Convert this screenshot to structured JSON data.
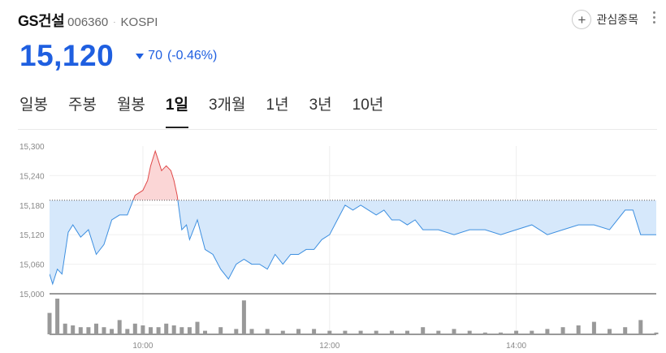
{
  "header": {
    "name": "GS건설",
    "code": "006360",
    "dot": "·",
    "market": "KOSPI",
    "fav_label": "관심종목",
    "fav_icon": "plus-icon"
  },
  "quote": {
    "price": "15,120",
    "change": "70",
    "change_pct": "(-0.46%)",
    "direction": "down",
    "color": "#1f5fe0"
  },
  "tabs": [
    {
      "label": "일봉"
    },
    {
      "label": "주봉"
    },
    {
      "label": "월봉"
    },
    {
      "label": "1일"
    },
    {
      "label": "3개월"
    },
    {
      "label": "1년"
    },
    {
      "label": "3년"
    },
    {
      "label": "10년"
    }
  ],
  "active_tab": 3,
  "chart_data": {
    "type": "area",
    "title": "",
    "prev_close": 15190,
    "ylim": [
      15000,
      15300
    ],
    "yticks": [
      "15,300",
      "15,240",
      "15,180",
      "15,120",
      "15,060",
      "15,000"
    ],
    "xticks": [
      "10:00",
      "12:00",
      "14:00"
    ],
    "xlim": [
      "09:00",
      "15:30"
    ],
    "up_color": "#e04a4a",
    "down_color": "#3d8fe0",
    "price": {
      "x": [
        "09:00",
        "09:02",
        "09:05",
        "09:08",
        "09:12",
        "09:15",
        "09:20",
        "09:25",
        "09:30",
        "09:35",
        "09:40",
        "09:45",
        "09:50",
        "09:55",
        "10:00",
        "10:03",
        "10:05",
        "10:08",
        "10:10",
        "10:12",
        "10:15",
        "10:18",
        "10:20",
        "10:22",
        "10:25",
        "10:28",
        "10:30",
        "10:35",
        "10:40",
        "10:45",
        "10:50",
        "10:55",
        "11:00",
        "11:05",
        "11:10",
        "11:15",
        "11:20",
        "11:25",
        "11:30",
        "11:35",
        "11:40",
        "11:45",
        "11:50",
        "11:55",
        "12:00",
        "12:05",
        "12:10",
        "12:15",
        "12:20",
        "12:25",
        "12:30",
        "12:35",
        "12:40",
        "12:45",
        "12:50",
        "12:55",
        "13:00",
        "13:10",
        "13:20",
        "13:30",
        "13:40",
        "13:50",
        "14:00",
        "14:10",
        "14:20",
        "14:30",
        "14:40",
        "14:50",
        "15:00",
        "15:10",
        "15:15",
        "15:20",
        "15:30"
      ],
      "y": [
        15040,
        15020,
        15050,
        15040,
        15125,
        15140,
        15115,
        15130,
        15080,
        15100,
        15150,
        15160,
        15160,
        15200,
        15210,
        15230,
        15260,
        15290,
        15270,
        15250,
        15260,
        15250,
        15230,
        15200,
        15130,
        15140,
        15110,
        15150,
        15090,
        15080,
        15050,
        15030,
        15060,
        15070,
        15060,
        15060,
        15050,
        15080,
        15060,
        15080,
        15080,
        15090,
        15090,
        15110,
        15120,
        15150,
        15180,
        15170,
        15180,
        15170,
        15160,
        15170,
        15150,
        15150,
        15140,
        15150,
        15130,
        15130,
        15120,
        15130,
        15130,
        15120,
        15130,
        15140,
        15120,
        15130,
        15140,
        15140,
        15130,
        15170,
        15170,
        15120,
        15120
      ]
    },
    "volume": {
      "x": [
        "09:00",
        "09:05",
        "09:10",
        "09:15",
        "09:20",
        "09:25",
        "09:30",
        "09:35",
        "09:40",
        "09:45",
        "09:50",
        "09:55",
        "10:00",
        "10:05",
        "10:10",
        "10:15",
        "10:20",
        "10:25",
        "10:30",
        "10:35",
        "10:40",
        "10:50",
        "11:00",
        "11:05",
        "11:10",
        "11:20",
        "11:30",
        "11:40",
        "11:50",
        "12:00",
        "12:10",
        "12:20",
        "12:30",
        "12:40",
        "12:50",
        "13:00",
        "13:10",
        "13:20",
        "13:30",
        "13:40",
        "13:50",
        "14:00",
        "14:10",
        "14:20",
        "14:30",
        "14:40",
        "14:50",
        "15:00",
        "15:10",
        "15:20",
        "15:30"
      ],
      "y": [
        0.6,
        1.0,
        0.3,
        0.25,
        0.2,
        0.2,
        0.3,
        0.2,
        0.15,
        0.4,
        0.15,
        0.3,
        0.25,
        0.2,
        0.2,
        0.3,
        0.25,
        0.2,
        0.2,
        0.35,
        0.1,
        0.2,
        0.15,
        0.95,
        0.15,
        0.15,
        0.1,
        0.15,
        0.15,
        0.1,
        0.1,
        0.1,
        0.1,
        0.1,
        0.1,
        0.2,
        0.1,
        0.15,
        0.1,
        0.05,
        0.05,
        0.1,
        0.1,
        0.15,
        0.2,
        0.25,
        0.35,
        0.15,
        0.2,
        0.4,
        0.05
      ]
    }
  }
}
